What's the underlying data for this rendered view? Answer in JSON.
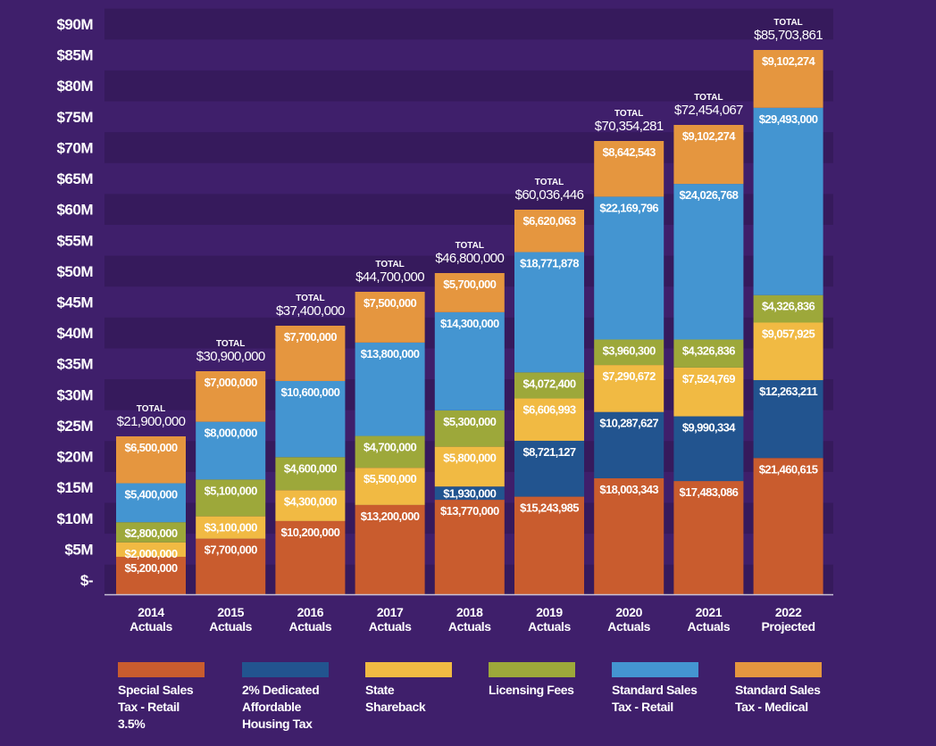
{
  "chart_data": {
    "type": "bar",
    "stacked": true,
    "title": "",
    "xlabel": "",
    "ylabel": "",
    "ylim": [
      0,
      90000000
    ],
    "y_ticks": [
      "$-",
      "$5M",
      "$10M",
      "$15M",
      "$20M",
      "$25M",
      "$30M",
      "$35M",
      "$40M",
      "$45M",
      "$50M",
      "$55M",
      "$60M",
      "$65M",
      "$70M",
      "$75M",
      "$80M",
      "$85M",
      "$90M"
    ],
    "grid": "alternating horizontal bands",
    "legend_position": "bottom",
    "categories": [
      {
        "year": "2014",
        "sub": "Actuals"
      },
      {
        "year": "2015",
        "sub": "Actuals"
      },
      {
        "year": "2016",
        "sub": "Actuals"
      },
      {
        "year": "2017",
        "sub": "Actuals"
      },
      {
        "year": "2018",
        "sub": "Actuals"
      },
      {
        "year": "2019",
        "sub": "Actuals"
      },
      {
        "year": "2020",
        "sub": "Actuals"
      },
      {
        "year": "2021",
        "sub": "Actuals"
      },
      {
        "year": "2022",
        "sub": "Projected"
      }
    ],
    "total_caption": "TOTAL",
    "totals": [
      "$21,900,000",
      "$30,900,000",
      "$37,400,000",
      "$44,700,000",
      "$46,800,000",
      "$60,036,446",
      "$70,354,281",
      "$72,454,067",
      "$85,703,861"
    ],
    "total_values": [
      21900000,
      30900000,
      37400000,
      44700000,
      46800000,
      60036446,
      70354281,
      72454067,
      85703861
    ],
    "series": [
      {
        "name": "Special Sales Tax - Retail 3.5%",
        "legend_lines": [
          "Special Sales",
          "Tax - Retail",
          "3.5%"
        ],
        "color": "#c95c2e",
        "values": [
          5200000,
          7700000,
          10200000,
          13200000,
          13770000,
          15243985,
          18003343,
          17483086,
          21460615
        ],
        "labels": [
          "$5,200,000",
          "$7,700,000",
          "$10,200,000",
          "$13,200,000",
          "$13,770,000",
          "$15,243,985",
          "$18,003,343",
          "$17,483,086",
          "$21,460,615"
        ]
      },
      {
        "name": "2% Dedicated Affordable Housing Tax",
        "legend_lines": [
          "2% Dedicated",
          "Affordable",
          "Housing Tax"
        ],
        "color": "#22548f",
        "values": [
          0,
          0,
          0,
          0,
          1930000,
          8721127,
          10287627,
          9990334,
          12263211
        ],
        "labels": [
          "",
          "",
          "",
          "",
          "$1,930,000",
          "$8,721,127",
          "$10,287,627",
          "$9,990,334",
          "$12,263,211"
        ]
      },
      {
        "name": "State Shareback",
        "legend_lines": [
          "State",
          "Shareback"
        ],
        "color": "#f1ba43",
        "values": [
          2000000,
          3100000,
          4300000,
          5500000,
          5800000,
          6606993,
          7290672,
          7524769,
          9057925
        ],
        "labels": [
          "$2,000,000",
          "$3,100,000",
          "$4,300,000",
          "$5,500,000",
          "$5,800,000",
          "$6,606,993",
          "$7,290,672",
          "$7,524,769",
          "$9,057,925"
        ]
      },
      {
        "name": "Licensing Fees",
        "legend_lines": [
          "Licensing Fees"
        ],
        "color": "#9da83a",
        "values": [
          2800000,
          5100000,
          4600000,
          4700000,
          5300000,
          4072400,
          3960300,
          4326836,
          4326836
        ],
        "labels": [
          "$2,800,000",
          "$5,100,000",
          "$4,600,000",
          "$4,700,000",
          "$5,300,000",
          "$4,072,400",
          "$3,960,300",
          "$4,326,836",
          "$4,326,836"
        ]
      },
      {
        "name": "Standard Sales Tax - Retail",
        "legend_lines": [
          "Standard Sales",
          "Tax - Retail"
        ],
        "color": "#4495d1",
        "values": [
          5400000,
          8000000,
          10600000,
          13800000,
          14300000,
          18771878,
          22169796,
          24026768,
          29493000
        ],
        "labels": [
          "$5,400,000",
          "$8,000,000",
          "$10,600,000",
          "$13,800,000",
          "$14,300,000",
          "$18,771,878",
          "$22,169,796",
          "$24,026,768",
          "$29,493,000"
        ]
      },
      {
        "name": "Standard Sales Tax - Medical",
        "legend_lines": [
          "Standard Sales",
          "Tax - Medical"
        ],
        "color": "#e5963f",
        "values": [
          6500000,
          7000000,
          7700000,
          7500000,
          5700000,
          6620063,
          8642543,
          9102274,
          9102274
        ],
        "labels": [
          "$6,500,000",
          "$7,000,000",
          "$7,700,000",
          "$7,500,000",
          "$5,700,000",
          "$6,620,063",
          "$8,642,543",
          "$9,102,274",
          "$9,102,274"
        ]
      }
    ]
  },
  "colors": {
    "background": "#3f1f6b",
    "band_dark": "#361a5c",
    "axis_line": "#c9c2d8",
    "text": "#ffffff"
  }
}
